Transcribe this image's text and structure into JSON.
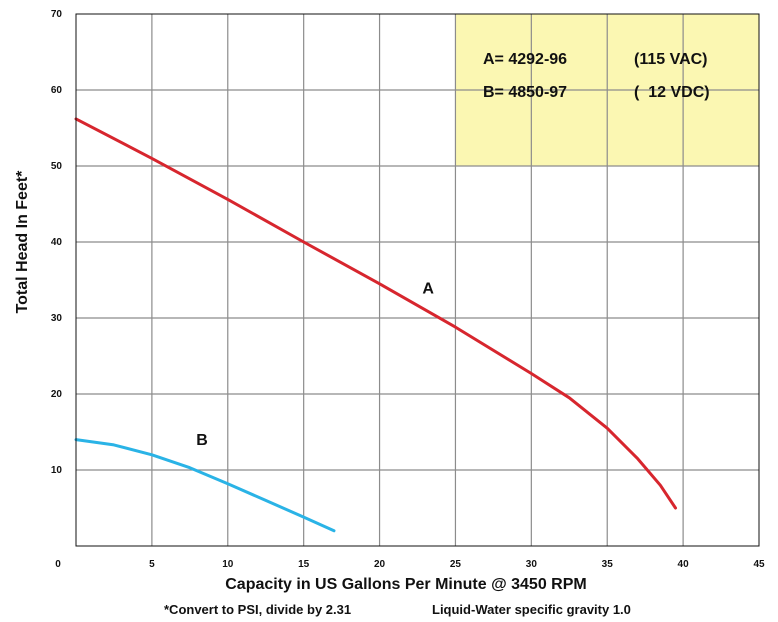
{
  "chart_data": {
    "type": "line",
    "xlabel": "Capacity in US Gallons Per Minute @ 3450 RPM",
    "ylabel": "Total Head In Feet*",
    "xlim": [
      0,
      45
    ],
    "ylim": [
      0,
      70
    ],
    "x_ticks": [
      "0",
      "5",
      "10",
      "15",
      "20",
      "25",
      "30",
      "35",
      "40",
      "45"
    ],
    "y_ticks": [
      "10",
      "20",
      "30",
      "40",
      "50",
      "60",
      "70"
    ],
    "grid": true,
    "series": [
      {
        "name": "A",
        "color": "#d7262e",
        "points": [
          [
            0,
            56.2
          ],
          [
            5,
            51
          ],
          [
            10,
            45.6
          ],
          [
            15,
            40
          ],
          [
            20,
            34.5
          ],
          [
            25,
            28.8
          ],
          [
            30,
            22.7
          ],
          [
            32.5,
            19.5
          ],
          [
            35,
            15.5
          ],
          [
            37,
            11.5
          ],
          [
            38.5,
            8
          ],
          [
            39.5,
            5
          ]
        ]
      },
      {
        "name": "B",
        "color": "#2ab3e6",
        "points": [
          [
            0,
            14
          ],
          [
            2.5,
            13.3
          ],
          [
            5,
            12
          ],
          [
            7.5,
            10.3
          ],
          [
            10,
            8.2
          ],
          [
            12.5,
            6
          ],
          [
            15,
            3.8
          ],
          [
            17,
            2
          ]
        ]
      }
    ],
    "legend": {
      "position": "top-right",
      "background": "#fbf7b2",
      "rows": [
        {
          "label": "A= 4292-96",
          "voltage": "(115 VAC)"
        },
        {
          "label": "B= 4850-97",
          "voltage": "(  12 VDC)"
        }
      ]
    },
    "series_labels": [
      {
        "text": "A",
        "x": 23.2,
        "y": 33.2
      },
      {
        "text": "B",
        "x": 8.3,
        "y": 13.3
      }
    ],
    "footnotes": [
      "*Convert to PSI, divide by 2.31",
      "Liquid-Water specific gravity 1.0"
    ]
  }
}
